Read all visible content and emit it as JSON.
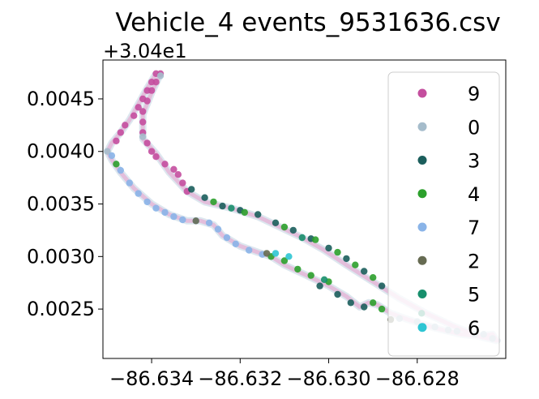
{
  "chart_data": {
    "type": "scatter",
    "title": "Vehicle_4 events_9531636.csv",
    "xlabel": "",
    "ylabel": "",
    "y_offset_label": "+3.04e1",
    "y_offset": 30.4,
    "xlim": [
      -86.6351,
      -86.626
    ],
    "ylim": [
      0.00203,
      0.00487
    ],
    "x_ticks": [
      -86.634,
      -86.632,
      -86.63,
      -86.628
    ],
    "x_tick_labels": [
      "−86.634",
      "−86.632",
      "−86.630",
      "−86.628"
    ],
    "y_ticks": [
      0.0025,
      0.003,
      0.0035,
      0.004,
      0.0045
    ],
    "y_tick_labels": [
      "0.0025",
      "0.0030",
      "0.0035",
      "0.0040",
      "0.0045"
    ],
    "grid": false,
    "legend_position": "upper-right",
    "legend": [
      {
        "label": "9",
        "color": "#c44e9e"
      },
      {
        "label": "0",
        "color": "#a5bccb"
      },
      {
        "label": "3",
        "color": "#1b5e5c"
      },
      {
        "label": "4",
        "color": "#2ca02c"
      },
      {
        "label": "7",
        "color": "#8ab4e8"
      },
      {
        "label": "2",
        "color": "#666b52"
      },
      {
        "label": "5",
        "color": "#178f6c"
      },
      {
        "label": "6",
        "color": "#2ec5d3"
      }
    ],
    "track": [
      [
        -86.6339,
        0.00474
      ],
      [
        -86.6341,
        0.0046
      ],
      [
        -86.6343,
        0.00445
      ],
      [
        -86.6345,
        0.0043
      ],
      [
        -86.6347,
        0.00418
      ],
      [
        -86.6349,
        0.00408
      ],
      [
        -86.635,
        0.004
      ],
      [
        -86.6349,
        0.00392
      ],
      [
        -86.6347,
        0.0038
      ],
      [
        -86.6344,
        0.00365
      ],
      [
        -86.634,
        0.0035
      ],
      [
        -86.6336,
        0.0034
      ],
      [
        -86.6332,
        0.00334
      ],
      [
        -86.6329,
        0.00334
      ],
      [
        -86.6326,
        0.0033
      ],
      [
        -86.6324,
        0.0032
      ],
      [
        -86.632,
        0.0031
      ],
      [
        -86.6316,
        0.00304
      ],
      [
        -86.6313,
        0.003
      ],
      [
        -86.631,
        0.00292
      ],
      [
        -86.6305,
        0.00282
      ],
      [
        -86.63,
        0.00272
      ],
      [
        -86.6296,
        0.00262
      ],
      [
        -86.6293,
        0.00252
      ],
      [
        -86.6291,
        0.00256
      ],
      [
        -86.6289,
        0.00254
      ],
      [
        -86.6286,
        0.00246
      ],
      [
        -86.6282,
        0.0024
      ],
      [
        -86.6276,
        0.00232
      ],
      [
        -86.627,
        0.00226
      ],
      [
        -86.6266,
        0.00224
      ],
      [
        -86.6263,
        0.00226
      ],
      [
        -86.6262,
        0.0022
      ],
      [
        -86.6266,
        0.00224
      ],
      [
        -86.6272,
        0.00234
      ],
      [
        -86.6278,
        0.00246
      ],
      [
        -86.6284,
        0.0026
      ],
      [
        -86.629,
        0.00276
      ],
      [
        -86.6296,
        0.00292
      ],
      [
        -86.6301,
        0.00306
      ],
      [
        -86.6306,
        0.00318
      ],
      [
        -86.6311,
        0.00328
      ],
      [
        -86.6316,
        0.00338
      ],
      [
        -86.6322,
        0.00346
      ],
      [
        -86.6328,
        0.00352
      ],
      [
        -86.6332,
        0.00362
      ],
      [
        -86.6336,
        0.0038
      ],
      [
        -86.6339,
        0.00398
      ],
      [
        -86.6342,
        0.00412
      ],
      [
        -86.6342,
        0.00435
      ],
      [
        -86.634,
        0.00456
      ],
      [
        -86.6338,
        0.00474
      ]
    ],
    "series": [
      {
        "name": "9",
        "points": [
          [
            -86.6339,
            0.00474
          ],
          [
            -86.634,
            0.00466
          ],
          [
            -86.6341,
            0.00458
          ],
          [
            -86.6342,
            0.0045
          ],
          [
            -86.6343,
            0.00442
          ],
          [
            -86.6344,
            0.00434
          ],
          [
            -86.6346,
            0.00425
          ],
          [
            -86.6347,
            0.00418
          ],
          [
            -86.6348,
            0.0041
          ],
          [
            -86.6338,
            0.00474
          ],
          [
            -86.6339,
            0.00466
          ],
          [
            -86.634,
            0.00458
          ],
          [
            -86.6341,
            0.00448
          ],
          [
            -86.6342,
            0.00438
          ],
          [
            -86.6342,
            0.00428
          ],
          [
            -86.6342,
            0.00418
          ],
          [
            -86.6341,
            0.00408
          ],
          [
            -86.634,
            0.004
          ],
          [
            -86.6339,
            0.00395
          ],
          [
            -86.6337,
            0.00388
          ],
          [
            -86.6335,
            0.00383
          ],
          [
            -86.6334,
            0.00378
          ],
          [
            -86.6333,
            0.0037
          ],
          [
            -86.6332,
            0.00362
          ]
        ]
      },
      {
        "name": "0",
        "points": [
          [
            -86.6338,
            0.00472
          ],
          [
            -86.635,
            0.004
          ],
          [
            -86.6342,
            0.00414
          ],
          [
            -86.6271,
            0.00229
          ],
          [
            -86.6265,
            0.00226
          ],
          [
            -86.6263,
            0.00222
          ],
          [
            -86.6267,
            0.00226
          ],
          [
            -86.628,
            0.00238
          ],
          [
            -86.6276,
            0.00233
          ],
          [
            -86.6273,
            0.0023
          ],
          [
            -86.6284,
            0.00241
          ]
        ]
      },
      {
        "name": "3",
        "points": [
          [
            -86.6331,
            0.00364
          ],
          [
            -86.6328,
            0.00356
          ],
          [
            -86.6324,
            0.00348
          ],
          [
            -86.632,
            0.00344
          ],
          [
            -86.6316,
            0.0034
          ],
          [
            -86.6312,
            0.00332
          ],
          [
            -86.6308,
            0.00325
          ],
          [
            -86.6304,
            0.00317
          ],
          [
            -86.63,
            0.00308
          ],
          [
            -86.6296,
            0.00298
          ],
          [
            -86.6292,
            0.00286
          ],
          [
            -86.6288,
            0.00272
          ],
          [
            -86.6302,
            0.00272
          ],
          [
            -86.6298,
            0.00264
          ],
          [
            -86.6295,
            0.00256
          ],
          [
            -86.6292,
            0.00252
          ]
        ]
      },
      {
        "name": "4",
        "points": [
          [
            -86.6348,
            0.00388
          ],
          [
            -86.6326,
            0.00352
          ],
          [
            -86.6319,
            0.00342
          ],
          [
            -86.631,
            0.00328
          ],
          [
            -86.6303,
            0.00316
          ],
          [
            -86.6298,
            0.00304
          ],
          [
            -86.6294,
            0.00292
          ],
          [
            -86.629,
            0.0028
          ],
          [
            -86.631,
            0.00296
          ],
          [
            -86.6307,
            0.00288
          ],
          [
            -86.6304,
            0.00282
          ],
          [
            -86.63,
            0.00276
          ],
          [
            -86.6313,
            0.003
          ],
          [
            -86.629,
            0.00256
          ],
          [
            -86.6288,
            0.0025
          ]
        ]
      },
      {
        "name": "7",
        "points": [
          [
            -86.6349,
            0.00396
          ],
          [
            -86.6347,
            0.00382
          ],
          [
            -86.6345,
            0.0037
          ],
          [
            -86.6343,
            0.0036
          ],
          [
            -86.6341,
            0.00352
          ],
          [
            -86.6339,
            0.00346
          ],
          [
            -86.6337,
            0.00342
          ],
          [
            -86.6335,
            0.00338
          ],
          [
            -86.6333,
            0.00335
          ],
          [
            -86.633,
            0.00334
          ],
          [
            -86.6327,
            0.00332
          ],
          [
            -86.6325,
            0.00326
          ],
          [
            -86.6323,
            0.00318
          ],
          [
            -86.6321,
            0.00312
          ],
          [
            -86.6318,
            0.00306
          ],
          [
            -86.6315,
            0.00302
          ]
        ]
      },
      {
        "name": "2",
        "points": [
          [
            -86.633,
            0.00334
          ],
          [
            -86.6314,
            0.00303
          ],
          [
            -86.6286,
            0.0024
          ]
        ]
      },
      {
        "name": "5",
        "points": [
          [
            -86.6322,
            0.00346
          ],
          [
            -86.6306,
            0.00318
          ],
          [
            -86.6301,
            0.00278
          ],
          [
            -86.6279,
            0.00246
          ]
        ]
      },
      {
        "name": "6",
        "points": [
          [
            -86.6312,
            0.00303
          ],
          [
            -86.6309,
            0.003
          ]
        ]
      }
    ]
  }
}
